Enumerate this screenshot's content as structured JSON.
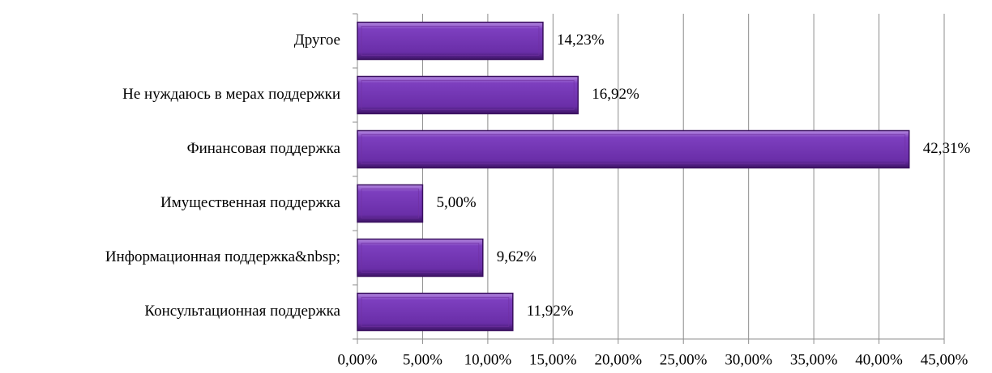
{
  "chart_data": {
    "type": "barh",
    "categories": [
      "Другое",
      "Не нуждаюсь в мерах поддержки",
      "Финансовая поддержка",
      "Имущественная поддержка",
      "Информационная поддержка&nbsp;",
      "Консультационная поддержка"
    ],
    "values": [
      14.23,
      16.92,
      42.31,
      5.0,
      9.62,
      11.92
    ],
    "value_labels": [
      "14,23%",
      "16,92%",
      "42,31%",
      "5,00%",
      "9,62%",
      "11,92%"
    ],
    "color": "#7030a0",
    "xlim": [
      0,
      45
    ],
    "xticks": [
      {
        "value": 0,
        "label": "0,00%"
      },
      {
        "value": 5,
        "label": "5,00%"
      },
      {
        "value": 10,
        "label": "10,00%"
      },
      {
        "value": 15,
        "label": "15,00%"
      },
      {
        "value": 20,
        "label": "20,00%"
      },
      {
        "value": 25,
        "label": "25,00%"
      },
      {
        "value": 30,
        "label": "30,00%"
      },
      {
        "value": 35,
        "label": "35,00%"
      },
      {
        "value": 40,
        "label": "40,00%"
      },
      {
        "value": 45,
        "label": "45,00%"
      }
    ],
    "grid": true
  }
}
